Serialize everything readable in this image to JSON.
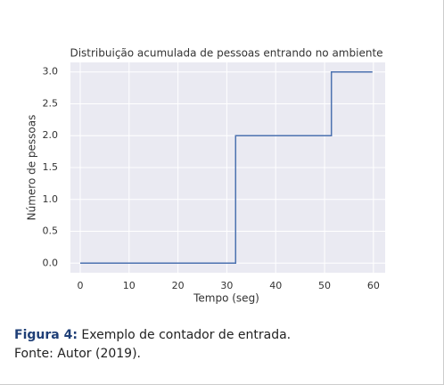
{
  "chart_data": {
    "type": "line",
    "title": "Distribuição acumulada de pessoas entrando no ambiente",
    "x_label": "Tempo (seg)",
    "y_label": "Número de pessoas",
    "x": [
      0,
      31.8,
      31.8,
      51.4,
      51.4,
      59.8
    ],
    "series": [
      {
        "name": "pessoas",
        "color": "#4c72b0",
        "values": [
          0,
          0,
          2,
          2,
          3,
          3
        ]
      }
    ],
    "xlim": [
      -2,
      62.4
    ],
    "ylim": [
      -0.15,
      3.15
    ],
    "xticks": [
      0,
      10,
      20,
      30,
      40,
      50,
      60
    ],
    "yticks": [
      {
        "value": 0,
        "label": "0.0"
      },
      {
        "value": 0.5,
        "label": "0.5"
      },
      {
        "value": 1,
        "label": "1.0"
      },
      {
        "value": 1.5,
        "label": "1.5"
      },
      {
        "value": 2,
        "label": "2.0"
      },
      {
        "value": 2.5,
        "label": "2.5"
      },
      {
        "value": 3,
        "label": "3.0"
      }
    ],
    "grid": true
  },
  "caption": {
    "label": "Figura 4:",
    "text": "Exemplo de contador de entrada.",
    "source_label": "Fonte:",
    "source": "Autor (2019)."
  }
}
